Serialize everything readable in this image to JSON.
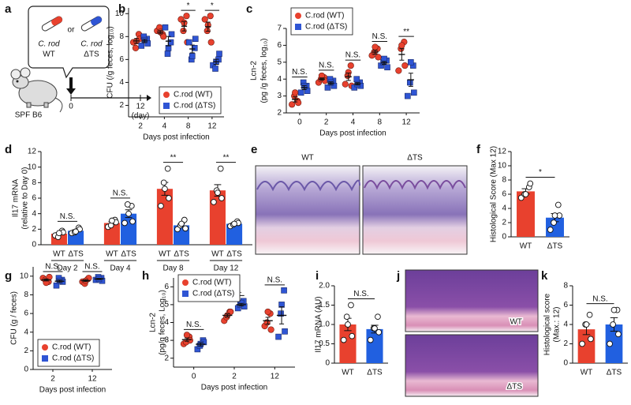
{
  "schematic": {
    "panel": "a",
    "strain_1": [
      "C. rod",
      "WT"
    ],
    "or": "or",
    "strain_2": [
      "C. rod",
      "ΔTS"
    ],
    "mouse": "SPF B6",
    "timeline": [
      "0",
      "12"
    ],
    "unit": "(day)"
  },
  "micrographs": [
    {
      "panel": "e",
      "labels": [
        "WT",
        "ΔTS"
      ]
    },
    {
      "panel": "j",
      "labels": [
        "WT",
        "ΔTS"
      ]
    }
  ],
  "chart_data": [
    {
      "type": "dot",
      "panel": "b",
      "ylabel": [
        "CFU (/g feces, log₁₀)"
      ],
      "xlabel": "Days post infection",
      "categories": [
        "2",
        "4",
        "8",
        "12"
      ],
      "ylim": [
        1,
        10.5
      ],
      "yticks": [
        2,
        4,
        6,
        8,
        10
      ],
      "legend": "lower right",
      "significance": [
        null,
        null,
        "*",
        "*"
      ],
      "series": [
        {
          "name": "C.rod (WT)",
          "color": "#e8412e",
          "marker": "circle",
          "values": [
            7.62,
            8.38,
            8.9,
            8.86
          ],
          "errors": [
            0.2,
            0.14,
            0.41,
            0.4
          ],
          "points": [
            [
              7.5,
              8.2,
              7.0,
              7.8,
              7.6
            ],
            [
              8.5,
              8.2,
              8.8,
              8.0,
              8.4
            ],
            [
              9.5,
              9.8,
              8.5,
              7.5,
              9.2
            ],
            [
              9.5,
              9.8,
              8.5,
              7.5,
              9.0
            ]
          ]
        },
        {
          "name": "C.rod (ΔTS)",
          "color": "#2f55d4",
          "marker": "square",
          "values": [
            7.62,
            7.6,
            6.92,
            5.8
          ],
          "errors": [
            0.14,
            0.41,
            0.34,
            0.22
          ],
          "points": [
            [
              7.2,
              7.8,
              8.0,
              7.4,
              7.7
            ],
            [
              8.8,
              7.5,
              6.5,
              8.2,
              7.0
            ],
            [
              7.5,
              7.0,
              6.0,
              7.8,
              6.3
            ],
            [
              5.5,
              6.0,
              5.2,
              6.5,
              5.8
            ]
          ]
        }
      ]
    },
    {
      "type": "dot",
      "panel": "c",
      "ylabel": [
        "Lcn-2",
        "(pg /g feces, log₁₀)"
      ],
      "xlabel": "Days post infection",
      "categories": [
        "0",
        "2",
        "4",
        "8",
        "12"
      ],
      "ylim": [
        2,
        7
      ],
      "yticks": [
        2,
        3,
        4,
        5,
        6,
        7
      ],
      "legend": "upper left",
      "significance": [
        "N.S.",
        "N.S.",
        "N.S.",
        "N.S.",
        "**"
      ],
      "series": [
        {
          "name": "C.rod (WT)",
          "color": "#e8412e",
          "marker": "circle",
          "values": [
            2.8,
            4.0,
            4.14,
            5.6,
            5.46
          ],
          "errors": [
            0.15,
            0.07,
            0.22,
            0.11,
            0.34
          ],
          "points": [
            [
              2.5,
              2.7,
              3.0,
              2.6,
              3.2
            ],
            [
              3.8,
              4.1,
              4.0,
              3.9,
              4.2
            ],
            [
              3.7,
              4.8,
              4.2,
              3.6,
              4.4
            ],
            [
              5.4,
              5.8,
              5.6,
              5.3,
              5.9
            ],
            [
              4.5,
              6.2,
              5.8,
              4.8,
              6.0
            ]
          ]
        },
        {
          "name": "C.rod (ΔTS)",
          "color": "#2f55d4",
          "marker": "square",
          "values": [
            3.5,
            3.76,
            3.72,
            4.96,
            3.96
          ],
          "errors": [
            0.12,
            0.08,
            0.07,
            0.09,
            0.39
          ],
          "points": [
            [
              3.2,
              3.6,
              3.8,
              3.3,
              3.6
            ],
            [
              3.5,
              3.9,
              4.0,
              3.6,
              3.8
            ],
            [
              3.5,
              3.8,
              4.0,
              3.6,
              3.7
            ],
            [
              4.8,
              5.1,
              5.0,
              4.7,
              5.2
            ],
            [
              3.0,
              4.8,
              3.8,
              3.2,
              5.0
            ]
          ]
        }
      ]
    },
    {
      "type": "bar",
      "panel": "d",
      "ylabel": [
        "Il17 mRNA",
        "(relative to Day 0)"
      ],
      "categories": [
        "Day 2",
        "Day 4",
        "Day 8",
        "Day 12"
      ],
      "ylim": [
        0,
        12
      ],
      "yticks": [
        0,
        2,
        4,
        6,
        8,
        10,
        12
      ],
      "significance": [
        "N.S.",
        "N.S.",
        "**",
        "**"
      ],
      "series": [
        {
          "name": "WT",
          "color": "#e8412e",
          "values": [
            1.42,
            2.8,
            7.2,
            7.0
          ],
          "errors": [
            0.14,
            0.17,
            0.83,
            0.74
          ],
          "points": [
            [
              1.2,
              1.8,
              1.0,
              1.6,
              1.5
            ],
            [
              2.3,
              3.2,
              2.5,
              2.9,
              3.1
            ],
            [
              5.0,
              9.8,
              8.0,
              6.0,
              7.2
            ],
            [
              5.5,
              9.8,
              7.0,
              6.0,
              6.7
            ]
          ]
        },
        {
          "name": "ΔTS",
          "color": "#2160e0",
          "values": [
            1.8,
            4.0,
            2.5,
            2.7
          ],
          "errors": [
            0.13,
            0.5,
            0.22,
            0.1
          ],
          "points": [
            [
              1.5,
              2.2,
              1.6,
              2.0,
              1.7
            ],
            [
              2.8,
              5.0,
              5.2,
              3.0,
              4.0
            ],
            [
              2.0,
              3.2,
              2.5,
              2.1,
              2.7
            ],
            [
              2.4,
              3.0,
              2.6,
              2.8,
              2.7
            ]
          ]
        }
      ]
    },
    {
      "type": "bar",
      "panel": "f",
      "ylabel": [
        "Histological Score (Max 12)"
      ],
      "categories": [
        "WT",
        "ΔTS"
      ],
      "colors": [
        "#e8412e",
        "#2160e0"
      ],
      "values": [
        6.4,
        2.7
      ],
      "errors": [
        0.37,
        0.57
      ],
      "points": [
        [
          5.5,
          7.0,
          6.0,
          7.5,
          6.0
        ],
        [
          1.0,
          4.5,
          2.0,
          3.0,
          3.0
        ]
      ],
      "ylim": [
        0,
        12
      ],
      "yticks": [
        0,
        2,
        4,
        6,
        8,
        10,
        12
      ],
      "significance": "*"
    },
    {
      "type": "dot",
      "panel": "g",
      "ylabel": [
        "CFU (g / feces)"
      ],
      "xlabel": "Days post infection",
      "categories": [
        "2",
        "12"
      ],
      "ylim": [
        0,
        11
      ],
      "yticks": [
        0,
        2,
        4,
        6,
        8,
        10
      ],
      "legend": "lower left",
      "significance": [
        "N.S.",
        "N.S."
      ],
      "series": [
        {
          "name": "C.rod (WT)",
          "color": "#e8412e",
          "marker": "circle",
          "values": [
            9.6,
            9.52
          ],
          "errors": [
            0.11,
            0.1
          ],
          "points": [
            [
              9.8,
              9.4,
              9.6,
              9.9,
              9.3
            ],
            [
              9.4,
              9.7,
              9.2,
              9.8,
              9.5
            ]
          ]
        },
        {
          "name": "C.rod (ΔTS)",
          "color": "#2f55d4",
          "marker": "square",
          "values": [
            9.46,
            9.7
          ],
          "errors": [
            0.13,
            0.07
          ],
          "points": [
            [
              9.0,
              9.6,
              9.8,
              9.4,
              9.5
            ],
            [
              9.6,
              9.8,
              9.9,
              9.5,
              9.7
            ]
          ]
        }
      ]
    },
    {
      "type": "dot",
      "panel": "h",
      "ylabel": [
        "Lcn-2",
        "(pg/g feces, Log₁₀)"
      ],
      "xlabel": "Days post infection",
      "categories": [
        "0",
        "2",
        "12"
      ],
      "ylim": [
        1.5,
        6.5
      ],
      "yticks": [
        2,
        3,
        4,
        5,
        6
      ],
      "legend": "upper left",
      "significance": [
        "N.S.",
        "N.S.",
        "N.S."
      ],
      "series": [
        {
          "name": "C.rod (WT)",
          "color": "#e8412e",
          "marker": "circle",
          "values": [
            3.04,
            4.4,
            4.1
          ],
          "errors": [
            0.09,
            0.09,
            0.19
          ],
          "points": [
            [
              2.8,
              3.2,
              2.9,
              3.0,
              3.3
            ],
            [
              4.1,
              4.6,
              4.3,
              4.6,
              4.4
            ],
            [
              3.8,
              4.5,
              4.0,
              3.6,
              4.6
            ]
          ]
        },
        {
          "name": "C.rod (ΔTS)",
          "color": "#2f55d4",
          "marker": "square",
          "values": [
            2.78,
            5.0,
            4.4
          ],
          "errors": [
            0.09,
            0.07,
            0.48
          ],
          "points": [
            [
              2.5,
              3.0,
              2.7,
              2.9,
              2.8
            ],
            [
              4.8,
              5.2,
              5.0,
              4.9,
              5.1
            ],
            [
              3.2,
              5.8,
              4.5,
              3.5,
              5.0
            ]
          ]
        }
      ]
    },
    {
      "type": "bar",
      "panel": "i",
      "ylabel": [
        "Il17 mRNA (AU)"
      ],
      "categories": [
        "WT",
        "ΔTS"
      ],
      "colors": [
        "#e8412e",
        "#2160e0"
      ],
      "values": [
        1.0,
        0.88
      ],
      "errors": [
        0.16,
        0.1
      ],
      "points": [
        [
          0.6,
          1.5,
          1.2,
          0.7,
          1.0
        ],
        [
          0.6,
          1.2,
          0.9,
          0.8,
          0.9
        ]
      ],
      "ylim": [
        0,
        2
      ],
      "yticks": [
        0,
        0.5,
        {
          "value": 1,
          "label": "1.0"
        },
        1.5,
        {
          "value": 2,
          "label": "2.0"
        }
      ],
      "significance": "N.S."
    },
    {
      "type": "bar",
      "panel": "k",
      "ylabel": [
        "Histological score",
        "(Max.: 12)"
      ],
      "categories": [
        "WT",
        "ΔTS"
      ],
      "colors": [
        "#e8412e",
        "#2160e0"
      ],
      "values": [
        3.5,
        4.0
      ],
      "errors": [
        0.55,
        0.7
      ],
      "points": [
        [
          2.0,
          5.0,
          4.0,
          2.5,
          4.0
        ],
        [
          2.0,
          5.5,
          4.0,
          3.0,
          5.5
        ]
      ],
      "ylim": [
        0,
        8
      ],
      "yticks": [
        0,
        2,
        4,
        6,
        8
      ],
      "significance": "N.S."
    }
  ]
}
